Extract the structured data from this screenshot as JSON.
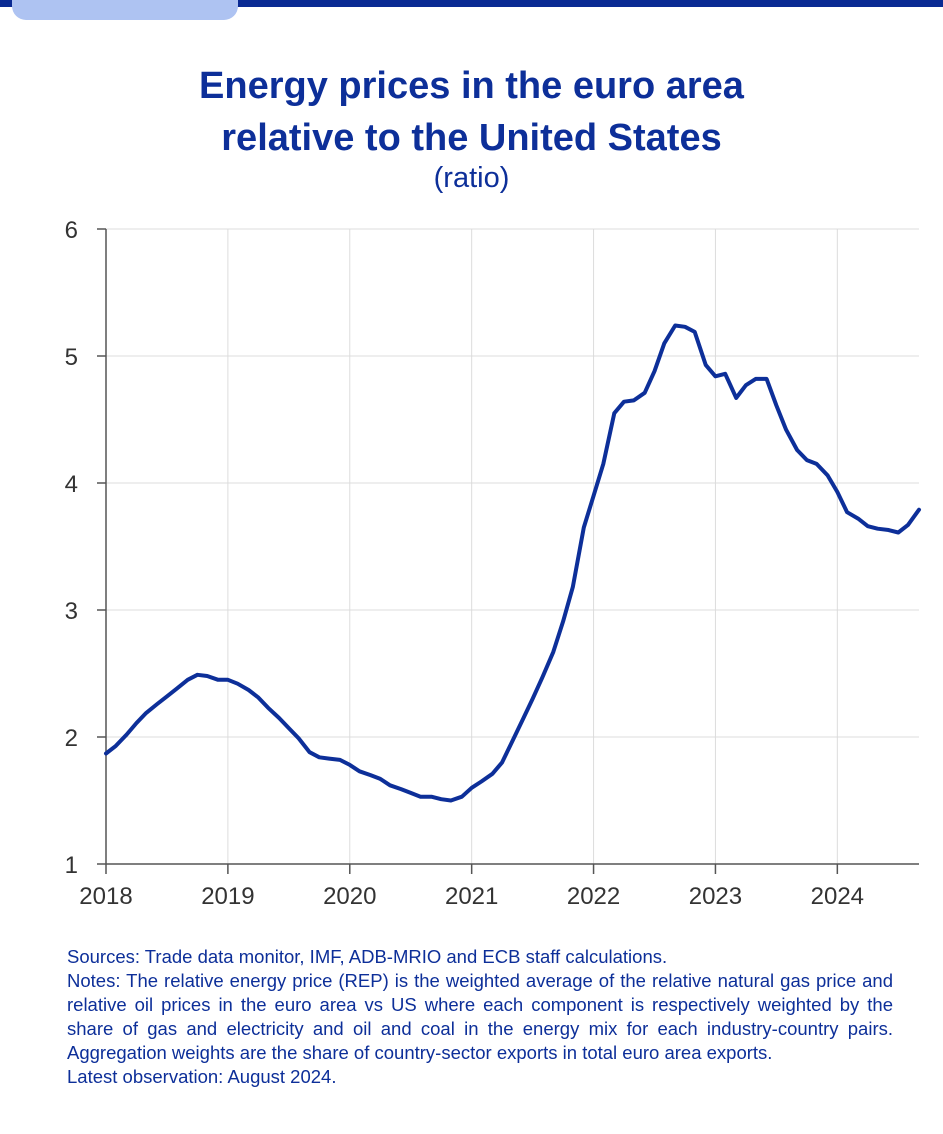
{
  "header": {
    "title_line1": "Energy prices in the euro area",
    "title_line2": "relative to the United States",
    "subtitle": "(ratio)"
  },
  "chart_data": {
    "type": "line",
    "title": "Energy prices in the euro area relative to the United States",
    "ylabel": "(ratio)",
    "xlim": [
      2018,
      2024.67
    ],
    "ylim": [
      1,
      6
    ],
    "xticks": [
      {
        "value": 2018,
        "label": "2018"
      },
      {
        "value": 2019,
        "label": "2019"
      },
      {
        "value": 2020,
        "label": "2020"
      },
      {
        "value": 2021,
        "label": "2021"
      },
      {
        "value": 2022,
        "label": "2022"
      },
      {
        "value": 2023,
        "label": "2023"
      },
      {
        "value": 2024,
        "label": "2024"
      }
    ],
    "yticks": [
      {
        "value": 1,
        "label": "1"
      },
      {
        "value": 2,
        "label": "2"
      },
      {
        "value": 3,
        "label": "3"
      },
      {
        "value": 4,
        "label": "4"
      },
      {
        "value": 5,
        "label": "5"
      },
      {
        "value": 6,
        "label": "6"
      }
    ],
    "grid": true,
    "series": [
      {
        "name": "Relative energy price (REP)",
        "color": "#0d2f99",
        "x": [
          2018.0,
          2018.08,
          2018.17,
          2018.25,
          2018.33,
          2018.42,
          2018.5,
          2018.58,
          2018.67,
          2018.75,
          2018.83,
          2018.92,
          2019.0,
          2019.08,
          2019.17,
          2019.25,
          2019.33,
          2019.42,
          2019.5,
          2019.58,
          2019.67,
          2019.75,
          2019.83,
          2019.92,
          2020.0,
          2020.08,
          2020.17,
          2020.25,
          2020.33,
          2020.42,
          2020.5,
          2020.58,
          2020.67,
          2020.75,
          2020.83,
          2020.92,
          2021.0,
          2021.08,
          2021.17,
          2021.25,
          2021.33,
          2021.42,
          2021.5,
          2021.58,
          2021.67,
          2021.75,
          2021.83,
          2021.92,
          2022.0,
          2022.08,
          2022.17,
          2022.25,
          2022.33,
          2022.42,
          2022.5,
          2022.58,
          2022.67,
          2022.75,
          2022.83,
          2022.92,
          2023.0,
          2023.08,
          2023.17,
          2023.25,
          2023.33,
          2023.42,
          2023.5,
          2023.58,
          2023.67,
          2023.75,
          2023.83,
          2023.92,
          2024.0,
          2024.08,
          2024.17,
          2024.25,
          2024.33,
          2024.42,
          2024.5,
          2024.58,
          2024.67
        ],
        "y": [
          1.87,
          1.93,
          2.02,
          2.11,
          2.19,
          2.26,
          2.32,
          2.38,
          2.45,
          2.49,
          2.48,
          2.45,
          2.45,
          2.42,
          2.37,
          2.31,
          2.23,
          2.15,
          2.07,
          1.99,
          1.88,
          1.84,
          1.83,
          1.82,
          1.78,
          1.73,
          1.7,
          1.67,
          1.62,
          1.59,
          1.56,
          1.53,
          1.53,
          1.51,
          1.5,
          1.53,
          1.6,
          1.65,
          1.71,
          1.8,
          1.96,
          2.14,
          2.3,
          2.47,
          2.67,
          2.91,
          3.18,
          3.65,
          3.9,
          4.15,
          4.55,
          4.64,
          4.65,
          4.71,
          4.88,
          5.1,
          5.24,
          5.23,
          5.19,
          4.93,
          4.84,
          4.86,
          4.67,
          4.77,
          4.82,
          4.82,
          4.61,
          4.42,
          4.26,
          4.18,
          4.15,
          4.06,
          3.93,
          3.77,
          3.72,
          3.66,
          3.64,
          3.63,
          3.61,
          3.67,
          3.79
        ]
      }
    ]
  },
  "notes": {
    "sources": "Sources: Trade data monitor, IMF, ADB-MRIO and ECB staff calculations.",
    "notes_text": "Notes: The relative energy price (REP) is the weighted average of the relative natural gas price and relative oil prices in the euro area vs US where each component is respectively weighted by the share of gas and electricity and oil and coal in the energy mix for each industry-country pairs. Aggregation weights are the share of country-sector exports in total euro area exports.",
    "latest": "Latest observation: August 2024."
  }
}
